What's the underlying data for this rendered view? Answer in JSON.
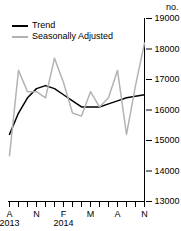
{
  "chart_data": {
    "type": "line",
    "categories": [
      "A\n2013",
      null,
      null,
      "N",
      null,
      null,
      "F\n2014",
      null,
      null,
      "M",
      null,
      null,
      "A",
      null,
      null,
      "N"
    ],
    "series": [
      {
        "name": "Trend",
        "color": "#000000",
        "values": [
          15200,
          15900,
          16400,
          16700,
          16800,
          16700,
          16500,
          16300,
          16100,
          16100,
          16100,
          16200,
          16300,
          16400,
          16450,
          16500
        ]
      },
      {
        "name": "Seasonally Adjusted",
        "color": "#b3b3b3",
        "values": [
          14500,
          17300,
          16600,
          16600,
          16400,
          17700,
          16900,
          15900,
          15800,
          16600,
          16100,
          16400,
          17300,
          15200,
          16800,
          18200
        ]
      }
    ],
    "y_label": "no.",
    "ylim": [
      13000,
      19000
    ],
    "yticks": [
      13000,
      14000,
      15000,
      16000,
      17000,
      18000,
      19000
    ],
    "legend": "top-left",
    "grid": false
  }
}
